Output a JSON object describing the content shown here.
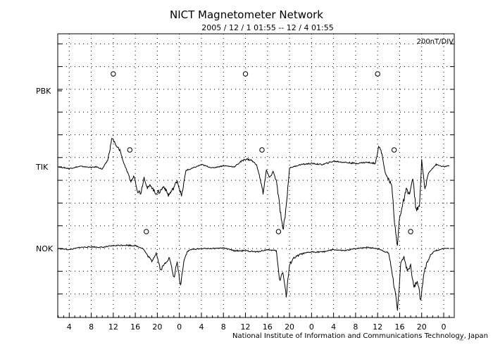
{
  "chart_data": {
    "type": "line",
    "title": "NICT Magnetometer Network",
    "subtitle": "2005 / 12 / 1   01:55 -- 12 / 4   01:55",
    "scale_label": "200nT/DIV",
    "credit": "National Institute of Information and Communications Technology, Japan",
    "corner_mark": "nict",
    "x_tick_labels": [
      "4",
      "8",
      "12",
      "16",
      "20",
      "0",
      "4",
      "8",
      "12",
      "16",
      "20",
      "0",
      "4",
      "8",
      "12",
      "16",
      "20",
      "0"
    ],
    "x_unit": "hour",
    "xlim": [
      1.9167,
      73.9167
    ],
    "grid": true,
    "grid_style": "dotted",
    "stations": [
      {
        "name": "PBK",
        "markers_hour": [
          12,
          36,
          60
        ],
        "values": []
      },
      {
        "name": "TIK",
        "markers_hour": [
          15,
          39,
          63
        ],
        "values": [
          [
            2,
            0
          ],
          [
            4,
            -15
          ],
          [
            6,
            5
          ],
          [
            8,
            -5
          ],
          [
            9,
            0
          ],
          [
            10,
            -20
          ],
          [
            11,
            60
          ],
          [
            11.8,
            260
          ],
          [
            12.5,
            180
          ],
          [
            13.2,
            150
          ],
          [
            13.8,
            50
          ],
          [
            14.5,
            -40
          ],
          [
            15.2,
            -130
          ],
          [
            15.8,
            -80
          ],
          [
            16.4,
            -210
          ],
          [
            17,
            -230
          ],
          [
            17.6,
            -90
          ],
          [
            18.2,
            -190
          ],
          [
            18.8,
            -160
          ],
          [
            19.6,
            -230
          ],
          [
            20.4,
            -220
          ],
          [
            21.2,
            -170
          ],
          [
            22,
            -250
          ],
          [
            22.8,
            -200
          ],
          [
            23.6,
            -120
          ],
          [
            24.4,
            -260
          ],
          [
            25.2,
            -30
          ],
          [
            26,
            -20
          ],
          [
            28,
            20
          ],
          [
            30,
            -10
          ],
          [
            32,
            10
          ],
          [
            34,
            0
          ],
          [
            35,
            40
          ],
          [
            36,
            70
          ],
          [
            37,
            60
          ],
          [
            38,
            20
          ],
          [
            38.6,
            -90
          ],
          [
            39.2,
            -230
          ],
          [
            39.8,
            -30
          ],
          [
            40.4,
            -100
          ],
          [
            41,
            -40
          ],
          [
            41.6,
            -120
          ],
          [
            42.2,
            -340
          ],
          [
            42.8,
            -570
          ],
          [
            43.4,
            -350
          ],
          [
            44,
            -10
          ],
          [
            46,
            20
          ],
          [
            48,
            30
          ],
          [
            50,
            20
          ],
          [
            52,
            50
          ],
          [
            54,
            40
          ],
          [
            56,
            30
          ],
          [
            58,
            40
          ],
          [
            59.6,
            30
          ],
          [
            60.2,
            190
          ],
          [
            60.8,
            110
          ],
          [
            61.4,
            -60
          ],
          [
            62,
            -110
          ],
          [
            62.6,
            -170
          ],
          [
            63.2,
            -560
          ],
          [
            63.6,
            -700
          ],
          [
            64,
            -430
          ],
          [
            64.6,
            -330
          ],
          [
            65.2,
            -200
          ],
          [
            65.8,
            -240
          ],
          [
            66.4,
            -100
          ],
          [
            67,
            -390
          ],
          [
            67.6,
            -350
          ],
          [
            68,
            60
          ],
          [
            68.6,
            -200
          ],
          [
            69.2,
            -60
          ],
          [
            69.8,
            -20
          ],
          [
            70.6,
            20
          ],
          [
            72,
            0
          ],
          [
            73,
            10
          ]
        ]
      },
      {
        "name": "NOK",
        "markers_hour": [
          18,
          42,
          66
        ],
        "values": [
          [
            2,
            0
          ],
          [
            4,
            -10
          ],
          [
            6,
            10
          ],
          [
            8,
            15
          ],
          [
            10,
            10
          ],
          [
            12,
            25
          ],
          [
            14,
            30
          ],
          [
            16,
            25
          ],
          [
            17.4,
            0
          ],
          [
            18.2,
            -60
          ],
          [
            19,
            -110
          ],
          [
            19.8,
            -40
          ],
          [
            20.6,
            -190
          ],
          [
            21.4,
            -130
          ],
          [
            22.2,
            -80
          ],
          [
            23,
            -260
          ],
          [
            23.6,
            -120
          ],
          [
            24.2,
            -330
          ],
          [
            24.8,
            -110
          ],
          [
            25.4,
            -30
          ],
          [
            26,
            -10
          ],
          [
            28,
            0
          ],
          [
            30,
            0
          ],
          [
            32,
            5
          ],
          [
            34,
            -20
          ],
          [
            36,
            -20
          ],
          [
            38,
            -30
          ],
          [
            40,
            -10
          ],
          [
            41.6,
            -20
          ],
          [
            42.2,
            -280
          ],
          [
            42.8,
            -200
          ],
          [
            43.4,
            -420
          ],
          [
            44,
            -150
          ],
          [
            44.6,
            -90
          ],
          [
            46,
            -50
          ],
          [
            48,
            -30
          ],
          [
            50,
            -30
          ],
          [
            52,
            -10
          ],
          [
            54,
            -20
          ],
          [
            56,
            0
          ],
          [
            58,
            10
          ],
          [
            60,
            0
          ],
          [
            62,
            -40
          ],
          [
            62.6,
            -200
          ],
          [
            63.2,
            -400
          ],
          [
            63.6,
            -560
          ],
          [
            64.2,
            -120
          ],
          [
            64.8,
            -80
          ],
          [
            65.4,
            -200
          ],
          [
            66,
            -150
          ],
          [
            66.6,
            -350
          ],
          [
            67.2,
            -270
          ],
          [
            67.8,
            -450
          ],
          [
            68.4,
            -210
          ],
          [
            69,
            -120
          ],
          [
            69.6,
            -60
          ],
          [
            70.4,
            -20
          ],
          [
            72,
            0
          ],
          [
            73,
            0
          ]
        ]
      }
    ]
  }
}
